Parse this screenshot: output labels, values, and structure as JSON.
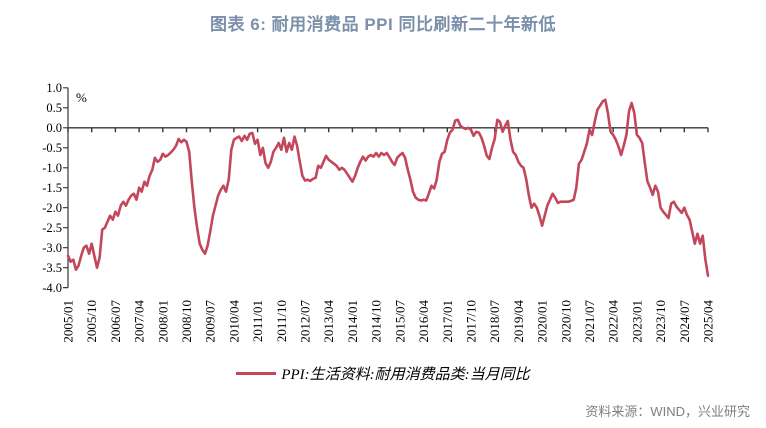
{
  "title": "图表 6: 耐用消费品 PPI 同比刷新二十年新低",
  "unit_label": "%",
  "legend": {
    "label": "PPI:生活资料:耐用消费品类:当月同比"
  },
  "source": "资料来源：WIND，兴业研究",
  "colors": {
    "title": "#7b90aa",
    "series_line": "#c3475a",
    "axis": "#363636",
    "tick_text": "#000000",
    "source_text": "#7f7f7f"
  },
  "chart_data": {
    "type": "line",
    "title": "图表 6: 耐用消费品 PPI 同比刷新二十年新低",
    "series_name": "PPI:生活资料:耐用消费品类:当月同比",
    "xlabel": "",
    "ylabel": "%",
    "x_start": "2005/01",
    "x_end": "2025/04",
    "x_frequency": "monthly",
    "ylim": [
      -4.0,
      1.0
    ],
    "grid": false,
    "legend_position": "bottom",
    "y_ticks": [
      1.0,
      0.5,
      0.0,
      -0.5,
      -1.0,
      -1.5,
      -2.0,
      -2.5,
      -3.0,
      -3.5,
      -4.0
    ],
    "x_tick_labels": [
      "2005/01",
      "2005/10",
      "2006/07",
      "2007/04",
      "2008/01",
      "2008/10",
      "2009/07",
      "2010/04",
      "2011/01",
      "2011/10",
      "2012/07",
      "2013/04",
      "2014/01",
      "2014/10",
      "2015/07",
      "2016/04",
      "2017/01",
      "2017/10",
      "2018/07",
      "2019/04",
      "2020/01",
      "2020/10",
      "2021/07",
      "2022/04",
      "2023/01",
      "2023/10",
      "2024/07",
      "2025/04"
    ],
    "values": [
      -3.2,
      -3.35,
      -3.3,
      -3.55,
      -3.45,
      -3.2,
      -3.0,
      -2.95,
      -3.15,
      -2.9,
      -3.2,
      -3.5,
      -3.25,
      -2.55,
      -2.5,
      -2.35,
      -2.2,
      -2.3,
      -2.1,
      -2.2,
      -1.95,
      -1.85,
      -1.95,
      -1.8,
      -1.7,
      -1.65,
      -1.8,
      -1.5,
      -1.6,
      -1.35,
      -1.45,
      -1.2,
      -1.05,
      -0.75,
      -0.85,
      -0.8,
      -0.65,
      -0.72,
      -0.68,
      -0.62,
      -0.55,
      -0.45,
      -0.28,
      -0.36,
      -0.3,
      -0.35,
      -0.6,
      -1.35,
      -2.0,
      -2.5,
      -2.9,
      -3.05,
      -3.15,
      -2.95,
      -2.6,
      -2.2,
      -1.95,
      -1.7,
      -1.55,
      -1.45,
      -1.6,
      -1.3,
      -0.55,
      -0.3,
      -0.25,
      -0.22,
      -0.33,
      -0.2,
      -0.3,
      -0.15,
      -0.13,
      -0.4,
      -0.3,
      -0.68,
      -0.5,
      -0.88,
      -1.0,
      -0.85,
      -0.6,
      -0.5,
      -0.38,
      -0.55,
      -0.25,
      -0.6,
      -0.38,
      -0.55,
      -0.22,
      -0.45,
      -0.85,
      -1.2,
      -1.32,
      -1.3,
      -1.33,
      -1.28,
      -1.25,
      -0.95,
      -1.0,
      -0.85,
      -0.7,
      -0.8,
      -0.85,
      -0.9,
      -0.95,
      -1.05,
      -1.0,
      -1.05,
      -1.15,
      -1.25,
      -1.35,
      -1.2,
      -1.0,
      -0.85,
      -0.72,
      -0.82,
      -0.72,
      -0.68,
      -0.72,
      -0.63,
      -0.72,
      -0.63,
      -0.68,
      -0.63,
      -0.73,
      -0.85,
      -0.93,
      -0.75,
      -0.68,
      -0.63,
      -0.75,
      -1.05,
      -1.3,
      -1.6,
      -1.75,
      -1.8,
      -1.82,
      -1.8,
      -1.82,
      -1.65,
      -1.45,
      -1.52,
      -1.3,
      -0.85,
      -0.65,
      -0.6,
      -0.3,
      -0.12,
      -0.05,
      0.18,
      0.2,
      0.05,
      0.0,
      -0.03,
      0.0,
      -0.05,
      -0.2,
      -0.1,
      -0.12,
      -0.25,
      -0.45,
      -0.7,
      -0.78,
      -0.5,
      -0.28,
      0.2,
      0.15,
      -0.1,
      0.05,
      0.17,
      -0.3,
      -0.6,
      -0.68,
      -0.85,
      -0.95,
      -1.0,
      -1.3,
      -1.7,
      -2.0,
      -1.9,
      -2.0,
      -2.2,
      -2.45,
      -2.2,
      -1.95,
      -1.8,
      -1.65,
      -1.75,
      -1.88,
      -1.85,
      -1.85,
      -1.85,
      -1.85,
      -1.83,
      -1.8,
      -1.5,
      -0.9,
      -0.8,
      -0.6,
      -0.4,
      -0.05,
      -0.18,
      0.15,
      0.45,
      0.55,
      0.66,
      0.7,
      0.37,
      -0.1,
      -0.18,
      -0.3,
      -0.47,
      -0.68,
      -0.45,
      -0.18,
      0.41,
      0.62,
      0.37,
      -0.18,
      -0.25,
      -0.38,
      -0.88,
      -1.34,
      -1.5,
      -1.68,
      -1.45,
      -1.6,
      -2.0,
      -2.1,
      -2.18,
      -2.26,
      -1.9,
      -1.85,
      -1.97,
      -2.05,
      -2.13,
      -2.0,
      -2.18,
      -2.3,
      -2.6,
      -2.9,
      -2.65,
      -2.9,
      -2.7,
      -3.3,
      -3.7
    ]
  }
}
